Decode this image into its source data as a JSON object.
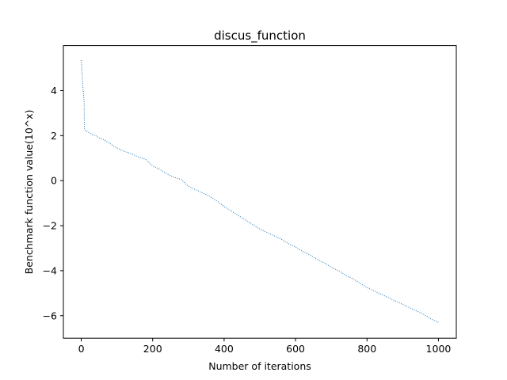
{
  "chart_data": {
    "type": "line",
    "title": "discus_function",
    "xlabel": "Number of iterations",
    "ylabel": "Benchmark function value(10^x)",
    "xlim": [
      -50,
      1050
    ],
    "ylim": [
      -7,
      6
    ],
    "xticks": [
      0,
      200,
      400,
      600,
      800,
      1000
    ],
    "yticks": [
      -6,
      -4,
      -2,
      0,
      2,
      4
    ],
    "ytick_labels": [
      "−6",
      "−4",
      "−2",
      "0",
      "2",
      "4"
    ],
    "grid": false,
    "line_style": "dotted",
    "series_color": "#1f77b4",
    "series": [
      {
        "x": [
          0,
          1,
          2,
          3,
          4,
          5,
          6,
          7,
          8,
          9,
          10,
          15,
          20,
          30,
          40,
          50,
          60,
          80,
          100,
          120,
          140,
          160,
          180,
          200,
          220,
          240,
          260,
          280,
          300,
          320,
          340,
          360,
          380,
          400,
          420,
          440,
          460,
          480,
          500,
          520,
          540,
          560,
          580,
          600,
          620,
          640,
          660,
          680,
          700,
          720,
          740,
          760,
          780,
          800,
          820,
          840,
          860,
          880,
          900,
          920,
          940,
          960,
          980,
          1000
        ],
        "y": [
          5.35,
          5.1,
          4.8,
          4.6,
          4.3,
          4.1,
          3.9,
          3.7,
          3.5,
          2.3,
          2.25,
          2.2,
          2.15,
          2.05,
          2.0,
          1.9,
          1.85,
          1.65,
          1.45,
          1.3,
          1.2,
          1.05,
          0.95,
          0.65,
          0.5,
          0.3,
          0.15,
          0.05,
          -0.25,
          -0.4,
          -0.55,
          -0.7,
          -0.9,
          -1.15,
          -1.35,
          -1.55,
          -1.75,
          -1.95,
          -2.15,
          -2.3,
          -2.45,
          -2.6,
          -2.8,
          -2.95,
          -3.15,
          -3.3,
          -3.5,
          -3.65,
          -3.85,
          -4.0,
          -4.2,
          -4.35,
          -4.55,
          -4.75,
          -4.9,
          -5.05,
          -5.2,
          -5.35,
          -5.5,
          -5.65,
          -5.8,
          -5.95,
          -6.15,
          -6.3
        ]
      }
    ]
  }
}
